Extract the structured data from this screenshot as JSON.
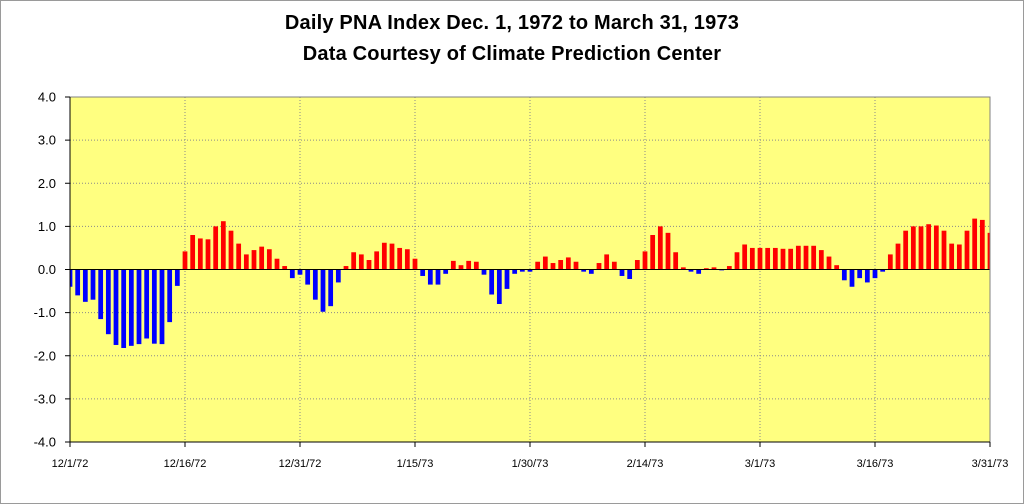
{
  "chart_data": {
    "type": "bar",
    "title": "Daily PNA Index Dec. 1, 1972 to March 31, 1973",
    "subtitle": "Data Courtesy of Climate Prediction Center",
    "xlabel": "",
    "ylabel": "",
    "ylim": [
      -4.0,
      4.0
    ],
    "y_ticks": [
      "4.0",
      "3.0",
      "2.0",
      "1.0",
      "0.0",
      "-1.0",
      "-2.0",
      "-3.0",
      "-4.0"
    ],
    "x_ticks": [
      {
        "index": 0,
        "label": "12/1/72"
      },
      {
        "index": 15,
        "label": "12/16/72"
      },
      {
        "index": 30,
        "label": "12/31/72"
      },
      {
        "index": 45,
        "label": "1/15/73"
      },
      {
        "index": 60,
        "label": "1/30/73"
      },
      {
        "index": 75,
        "label": "2/14/73"
      },
      {
        "index": 90,
        "label": "3/1/73"
      },
      {
        "index": 105,
        "label": "3/16/73"
      },
      {
        "index": 120,
        "label": "3/31/73"
      }
    ],
    "grid": true,
    "plot_background": "#ffff80",
    "positive_color": "#ff0000",
    "negative_color": "#0000ff",
    "values": [
      -0.4,
      -0.6,
      -0.75,
      -0.7,
      -1.15,
      -1.5,
      -1.75,
      -1.82,
      -1.77,
      -1.73,
      -1.6,
      -1.72,
      -1.73,
      -1.22,
      -0.38,
      0.42,
      0.8,
      0.72,
      0.7,
      1.0,
      1.12,
      0.9,
      0.6,
      0.35,
      0.45,
      0.53,
      0.47,
      0.25,
      0.08,
      -0.2,
      -0.12,
      -0.35,
      -0.7,
      -0.98,
      -0.85,
      -0.3,
      0.08,
      0.4,
      0.35,
      0.22,
      0.42,
      0.62,
      0.6,
      0.5,
      0.47,
      0.25,
      -0.15,
      -0.35,
      -0.35,
      -0.1,
      0.2,
      0.1,
      0.2,
      0.18,
      -0.12,
      -0.58,
      -0.8,
      -0.45,
      -0.1,
      -0.05,
      -0.05,
      0.18,
      0.3,
      0.15,
      0.22,
      0.28,
      0.18,
      -0.05,
      -0.1,
      0.15,
      0.35,
      0.18,
      -0.15,
      -0.22,
      0.22,
      0.42,
      0.8,
      1.0,
      0.85,
      0.4,
      0.05,
      -0.05,
      -0.1,
      0.03,
      0.05,
      -0.02,
      0.08,
      0.4,
      0.58,
      0.5,
      0.5,
      0.5,
      0.5,
      0.48,
      0.48,
      0.55,
      0.55,
      0.55,
      0.45,
      0.3,
      0.1,
      -0.25,
      -0.4,
      -0.2,
      -0.3,
      -0.2,
      -0.05,
      0.35,
      0.6,
      0.9,
      1.0,
      1.0,
      1.05,
      1.02,
      0.9,
      0.6,
      0.58,
      0.9,
      1.18,
      1.15,
      0.85
    ]
  }
}
